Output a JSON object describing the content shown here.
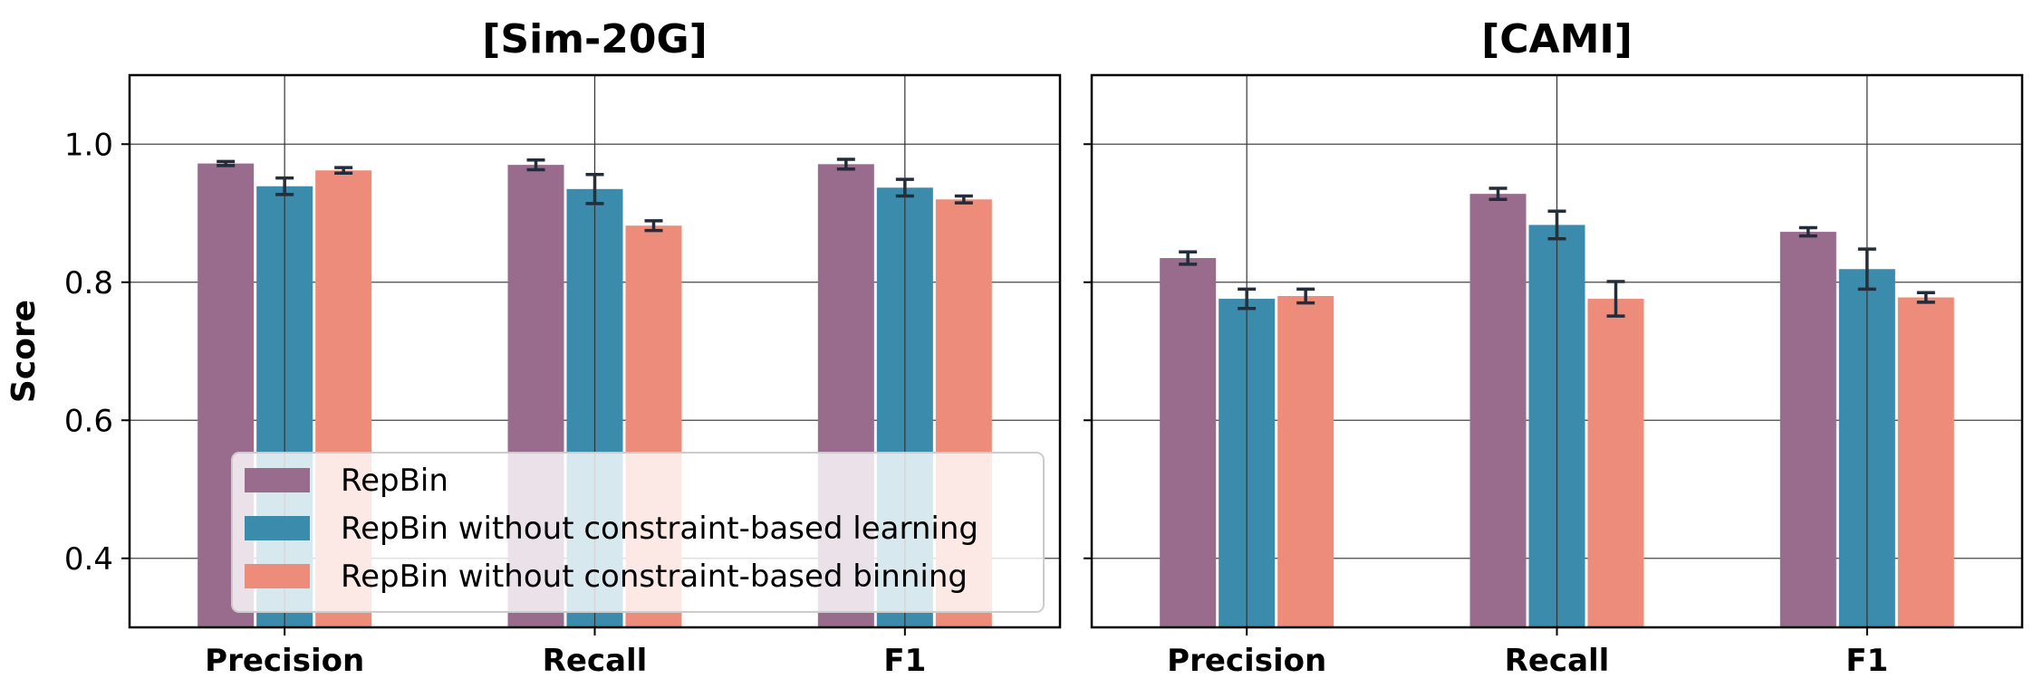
{
  "chart_data": [
    {
      "type": "bar",
      "title": "[Sim-20G]",
      "categories": [
        "Precision",
        "Recall",
        "F1"
      ],
      "ylabel": "Score",
      "xlabel": "",
      "ylim": [
        0.3,
        1.1
      ],
      "yticks": [
        "0.4",
        "0.6",
        "0.8",
        "1.0"
      ],
      "grid": true,
      "legend": "lower-left",
      "series": [
        {
          "name": "RepBin",
          "color": "#996b8c",
          "values": [
            0.972,
            0.97,
            0.971
          ],
          "errors": [
            0.003,
            0.007,
            0.007
          ]
        },
        {
          "name": "RepBin without constraint-based learning",
          "color": "#3b8bad",
          "values": [
            0.939,
            0.935,
            0.937
          ],
          "errors": [
            0.012,
            0.021,
            0.012
          ]
        },
        {
          "name": "RepBin without constraint-based binning",
          "color": "#ee8c7b",
          "values": [
            0.962,
            0.882,
            0.92
          ],
          "errors": [
            0.004,
            0.007,
            0.005
          ]
        }
      ]
    },
    {
      "type": "bar",
      "title": "[CAMI]",
      "categories": [
        "Precision",
        "Recall",
        "F1"
      ],
      "ylabel": "",
      "xlabel": "",
      "ylim": [
        0.3,
        1.1
      ],
      "grid": true,
      "series": [
        {
          "name": "RepBin",
          "color": "#996b8c",
          "values": [
            0.835,
            0.928,
            0.873
          ],
          "errors": [
            0.009,
            0.008,
            0.006
          ]
        },
        {
          "name": "RepBin without constraint-based learning",
          "color": "#3b8bad",
          "values": [
            0.776,
            0.883,
            0.819
          ],
          "errors": [
            0.014,
            0.02,
            0.029
          ]
        },
        {
          "name": "RepBin without constraint-based binning",
          "color": "#ee8c7b",
          "values": [
            0.78,
            0.776,
            0.778
          ],
          "errors": [
            0.01,
            0.025,
            0.007
          ]
        }
      ]
    }
  ]
}
